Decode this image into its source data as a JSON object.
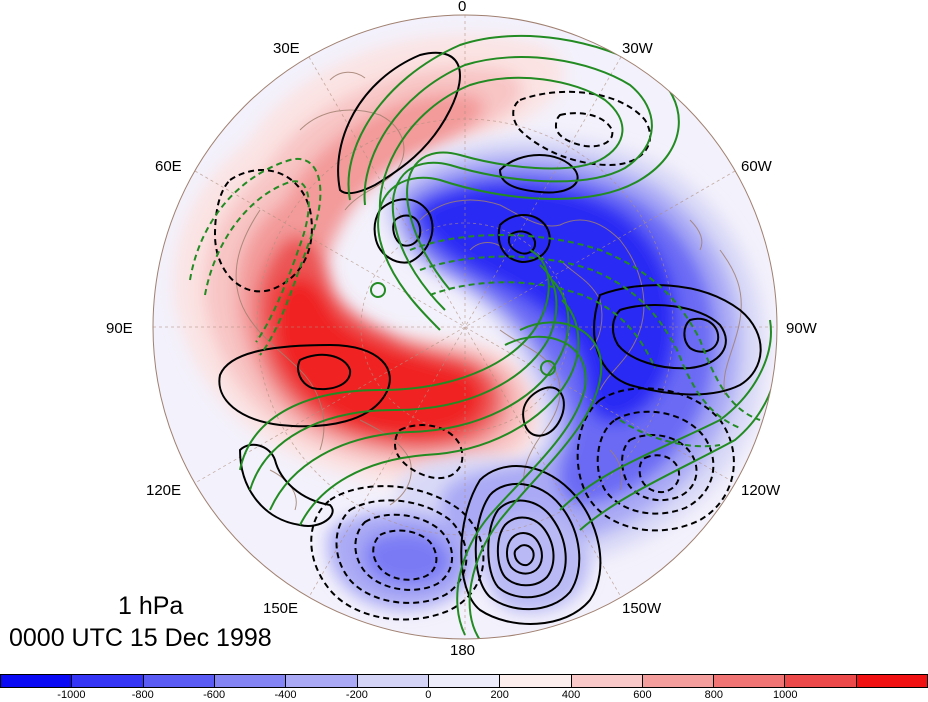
{
  "plot": {
    "level": "1 hPa",
    "time": "0000 UTC 15 Dec 1998"
  },
  "longitude_labels": {
    "lon_0": "0",
    "lon_30w": "30W",
    "lon_60w": "60W",
    "lon_90w": "90W",
    "lon_120w": "120W",
    "lon_150w": "150W",
    "lon_180": "180",
    "lon_150e": "150E",
    "lon_120e": "120E",
    "lon_90e": "90E",
    "lon_60e": "60E",
    "lon_30e": "30E"
  },
  "colorbar": {
    "colors": [
      "#0a0af5",
      "#3535f5",
      "#5a5af5",
      "#8484f5",
      "#a9a9f5",
      "#d4d4f7",
      "#ececfb",
      "#fdeeee",
      "#f9c8c8",
      "#f59e9e",
      "#f07474",
      "#ec4a4a",
      "#f01212"
    ],
    "labels": [
      "-1000",
      "-800",
      "-600",
      "-400",
      "-200",
      "0",
      "200",
      "400",
      "600",
      "800",
      "1000"
    ]
  },
  "colors": {
    "positive_contour": "#000000",
    "negative_contour": "#000000",
    "wind_contour": "#228b22",
    "coastline": "#a08070",
    "grid": "#b09080"
  }
}
